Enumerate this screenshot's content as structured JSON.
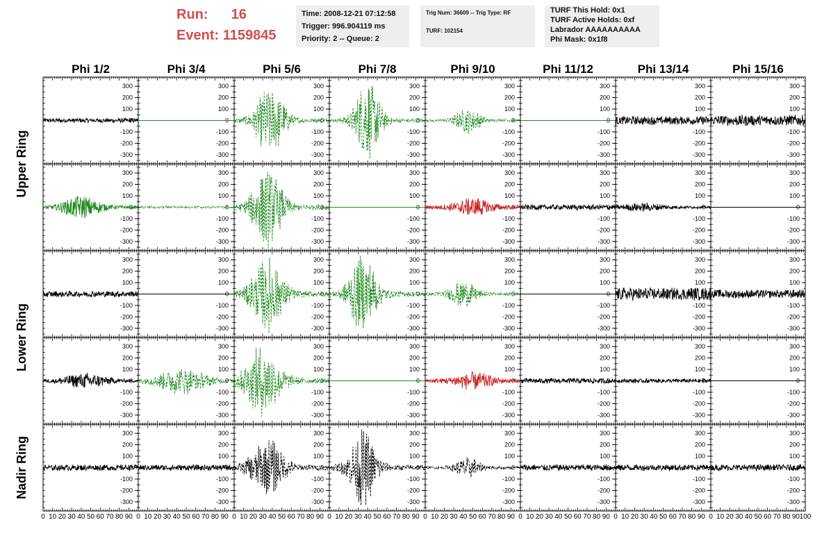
{
  "header": {
    "run_label": "Run:",
    "run_value": "16",
    "event_label": "Event:",
    "event_value": "1159845",
    "time": "Time: 2008-12-21 07:12:58",
    "trigger": "Trigger: 996.904119 ms",
    "priority": "Priority: 2 -- Queue: 2",
    "trig_num": "Trig Num: 36609 -- Trig Type: RF",
    "turf": "TURF: 102154",
    "turf_hold": "TURF This Hold: 0x1",
    "turf_active": "TURF Active Holds: 0xf",
    "labrador": "Labrador AAAAAAAAAA",
    "phi_mask": "Phi Mask: 0x1f8",
    "accent_color": "#d14e4e"
  },
  "columns": [
    "Phi 1/2",
    "Phi 3/4",
    "Phi 5/6",
    "Phi 7/8",
    "Phi 9/10",
    "Phi 11/12",
    "Phi 13/14",
    "Phi 15/16"
  ],
  "row_groups": [
    "Upper Ring",
    "Lower Ring",
    "Nadir Ring"
  ],
  "chart_data": {
    "type": "line",
    "x_ticks": [
      "0",
      "10",
      "20",
      "30",
      "40",
      "50",
      "60",
      "70",
      "80",
      "90",
      "100"
    ],
    "x_ticks_last": [
      "0",
      "10",
      "20",
      "30",
      "40",
      "50",
      "60",
      "70",
      "80",
      "90",
      "100"
    ],
    "y_ticks": [
      "300",
      "200",
      "100",
      "0",
      "-100",
      "-200",
      "-300"
    ],
    "ylim": [
      -380,
      380
    ],
    "xlim": [
      0,
      100
    ],
    "colors": {
      "k": "#000000",
      "g": "#1f8a1f",
      "r": "#c81e1e"
    },
    "panels": [
      [
        {
          "style": "k",
          "solid": true,
          "amp": 22,
          "center": null,
          "width": 0,
          "noise": 12
        },
        {
          "style": "g",
          "solid": true,
          "amp": 0,
          "center": null,
          "width": 0,
          "noise": 0
        },
        {
          "style": "g",
          "solid": false,
          "amp": 310,
          "center": 38,
          "width": 16,
          "noise": 20
        },
        {
          "style": "g",
          "solid": false,
          "amp": 360,
          "center": 40,
          "width": 14,
          "noise": 20
        },
        {
          "style": "g",
          "solid": false,
          "amp": 110,
          "center": 45,
          "width": 14,
          "noise": 12
        },
        {
          "style": "g",
          "solid": true,
          "amp": 0,
          "center": null,
          "width": 0,
          "noise": 0
        },
        {
          "style": "k",
          "solid": true,
          "amp": 40,
          "center": null,
          "width": 0,
          "noise": 15
        },
        {
          "style": "k",
          "solid": true,
          "amp": 50,
          "center": null,
          "width": 0,
          "noise": 16
        }
      ],
      [
        {
          "style": "g",
          "solid": true,
          "amp": 100,
          "center": 40,
          "width": 20,
          "noise": 15
        },
        {
          "style": "g",
          "solid": false,
          "amp": 10,
          "center": null,
          "width": 0,
          "noise": 5
        },
        {
          "style": "g",
          "solid": false,
          "amp": 360,
          "center": 35,
          "width": 16,
          "noise": 25
        },
        {
          "style": "g",
          "solid": true,
          "amp": 0,
          "center": null,
          "width": 0,
          "noise": 0
        },
        {
          "style": "r",
          "solid": true,
          "amp": 75,
          "center": 50,
          "width": 20,
          "noise": 20
        },
        {
          "style": "k",
          "solid": true,
          "amp": 25,
          "center": null,
          "width": 0,
          "noise": 12
        },
        {
          "style": "k",
          "solid": true,
          "amp": 30,
          "center": 30,
          "width": 25,
          "noise": 12
        },
        {
          "style": "k",
          "solid": true,
          "amp": 0,
          "center": null,
          "width": 0,
          "noise": 0
        }
      ],
      [
        {
          "style": "k",
          "solid": true,
          "amp": 28,
          "center": null,
          "width": 0,
          "noise": 12
        },
        {
          "style": "k",
          "solid": true,
          "amp": 0,
          "center": null,
          "width": 0,
          "noise": 0
        },
        {
          "style": "g",
          "solid": false,
          "amp": 330,
          "center": 35,
          "width": 18,
          "noise": 25
        },
        {
          "style": "g",
          "solid": false,
          "amp": 330,
          "center": 35,
          "width": 16,
          "noise": 25
        },
        {
          "style": "g",
          "solid": false,
          "amp": 120,
          "center": 40,
          "width": 14,
          "noise": 15
        },
        {
          "style": "k",
          "solid": true,
          "amp": 0,
          "center": null,
          "width": 0,
          "noise": 0
        },
        {
          "style": "k",
          "solid": true,
          "amp": 60,
          "center": null,
          "width": 0,
          "noise": 20
        },
        {
          "style": "k",
          "solid": true,
          "amp": 40,
          "center": null,
          "width": 0,
          "noise": 18
        }
      ],
      [
        {
          "style": "k",
          "solid": true,
          "amp": 60,
          "center": 45,
          "width": 25,
          "noise": 14
        },
        {
          "style": "g",
          "solid": false,
          "amp": 110,
          "center": 45,
          "width": 28,
          "noise": 15
        },
        {
          "style": "g",
          "solid": false,
          "amp": 300,
          "center": 30,
          "width": 20,
          "noise": 25
        },
        {
          "style": "g",
          "solid": true,
          "amp": 0,
          "center": null,
          "width": 0,
          "noise": 0
        },
        {
          "style": "r",
          "solid": true,
          "amp": 70,
          "center": 50,
          "width": 22,
          "noise": 18
        },
        {
          "style": "k",
          "solid": true,
          "amp": 25,
          "center": null,
          "width": 0,
          "noise": 12
        },
        {
          "style": "k",
          "solid": true,
          "amp": 20,
          "center": null,
          "width": 0,
          "noise": 10
        },
        {
          "style": "k",
          "solid": true,
          "amp": 0,
          "center": null,
          "width": 0,
          "noise": 0
        }
      ],
      [
        {
          "style": "k",
          "solid": true,
          "amp": 28,
          "center": null,
          "width": 0,
          "noise": 12
        },
        {
          "style": "k",
          "solid": true,
          "amp": 28,
          "center": null,
          "width": 0,
          "noise": 12
        },
        {
          "style": "k",
          "solid": false,
          "amp": 250,
          "center": 35,
          "width": 18,
          "noise": 25
        },
        {
          "style": "k",
          "solid": false,
          "amp": 330,
          "center": 35,
          "width": 15,
          "noise": 25
        },
        {
          "style": "k",
          "solid": false,
          "amp": 90,
          "center": 45,
          "width": 14,
          "noise": 12
        },
        {
          "style": "k",
          "solid": true,
          "amp": 30,
          "center": null,
          "width": 0,
          "noise": 14
        },
        {
          "style": "k",
          "solid": true,
          "amp": 30,
          "center": null,
          "width": 0,
          "noise": 14
        },
        {
          "style": "k",
          "solid": true,
          "amp": 30,
          "center": null,
          "width": 0,
          "noise": 14
        }
      ]
    ]
  }
}
